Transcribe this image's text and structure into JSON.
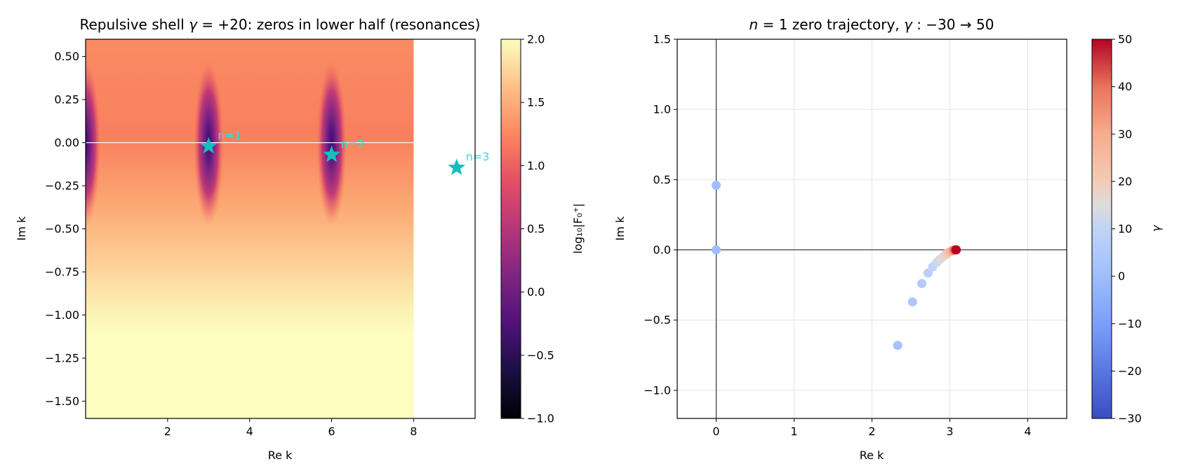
{
  "chart_data": [
    {
      "type": "heatmap",
      "title_parts": {
        "pre": "Repulsive shell ",
        "symbol": "γ",
        "mid": " = +20: zeros in lower half (resonances)"
      },
      "xlabel": "Re k",
      "ylabel": "Im k",
      "xlim": [
        0,
        9.5
      ],
      "ylim": [
        -1.6,
        0.6
      ],
      "data_extent_x": [
        0,
        8
      ],
      "xticks": [
        2,
        4,
        6,
        8
      ],
      "xtick_labels": [
        "2",
        "4",
        "6",
        "8"
      ],
      "yticks": [
        0.5,
        0.25,
        0.0,
        -0.25,
        -0.5,
        -0.75,
        -1.0,
        -1.25,
        -1.5
      ],
      "ytick_labels": [
        "0.50",
        "0.25",
        "0.00",
        "−0.25",
        "−0.50",
        "−0.75",
        "−1.00",
        "−1.25",
        "−1.50"
      ],
      "colormap": "magma",
      "colorbar": {
        "range": [
          -1.0,
          2.0
        ],
        "ticks": [
          2.0,
          1.5,
          1.0,
          0.5,
          0.0,
          -0.5,
          -1.0
        ],
        "tick_labels": [
          "2.0",
          "1.5",
          "1.0",
          "0.5",
          "0.0",
          "−0.5",
          "−1.0"
        ],
        "label": "log₁₀|F₀⁺|"
      },
      "reference_line": {
        "y": 0.0,
        "color": "#ffffff"
      },
      "zeros": [
        {
          "label": "n=1",
          "re": 3.0,
          "im": -0.02
        },
        {
          "label": "n=2",
          "re": 6.0,
          "im": -0.07
        },
        {
          "label": "n=3",
          "re": 9.05,
          "im": -0.145
        }
      ],
      "marker_color": "#17bebe",
      "annotation_color": "#22e5e5"
    },
    {
      "type": "scatter",
      "title_parts": {
        "n": "n",
        "eq1": " = 1 zero trajectory, ",
        "gamma": "γ",
        "range": " : −30 → 50"
      },
      "xlabel": "Re k",
      "ylabel": "Im k",
      "xlim": [
        -0.5,
        4.5
      ],
      "ylim": [
        -1.2,
        1.5
      ],
      "xticks": [
        0,
        1,
        2,
        3,
        4
      ],
      "xtick_labels": [
        "0",
        "1",
        "2",
        "3",
        "4"
      ],
      "yticks": [
        1.5,
        1.0,
        0.5,
        0.0,
        -0.5,
        -1.0
      ],
      "ytick_labels": [
        "1.5",
        "1.0",
        "0.5",
        "0.0",
        "−0.5",
        "−1.0"
      ],
      "grid": true,
      "axis_lines": {
        "x": 0,
        "y": 0
      },
      "colormap": "coolwarm",
      "colorbar": {
        "range": [
          -30,
          50
        ],
        "ticks": [
          50,
          40,
          30,
          20,
          10,
          0,
          -10,
          -20,
          -30
        ],
        "tick_labels": [
          "50",
          "40",
          "30",
          "20",
          "10",
          "0",
          "−10",
          "−20",
          "−30"
        ],
        "label": "γ"
      },
      "points": [
        {
          "re": 0.0,
          "im": 0.46,
          "gamma": 0
        },
        {
          "re": 0.0,
          "im": 0.0,
          "gamma": 0
        },
        {
          "re": 2.33,
          "im": -0.68,
          "gamma": 2
        },
        {
          "re": 2.52,
          "im": -0.37,
          "gamma": 4
        },
        {
          "re": 2.64,
          "im": -0.24,
          "gamma": 6
        },
        {
          "re": 2.72,
          "im": -0.165,
          "gamma": 8
        },
        {
          "re": 2.78,
          "im": -0.12,
          "gamma": 10
        },
        {
          "re": 2.83,
          "im": -0.09,
          "gamma": 12
        },
        {
          "re": 2.87,
          "im": -0.068,
          "gamma": 14
        },
        {
          "re": 2.91,
          "im": -0.05,
          "gamma": 16
        },
        {
          "re": 2.94,
          "im": -0.037,
          "gamma": 18
        },
        {
          "re": 2.96,
          "im": -0.027,
          "gamma": 20
        },
        {
          "re": 2.98,
          "im": -0.019,
          "gamma": 22
        },
        {
          "re": 3.0,
          "im": -0.013,
          "gamma": 24
        },
        {
          "re": 3.015,
          "im": -0.009,
          "gamma": 26
        },
        {
          "re": 3.025,
          "im": -0.006,
          "gamma": 28
        },
        {
          "re": 3.035,
          "im": -0.004,
          "gamma": 30
        },
        {
          "re": 3.045,
          "im": -0.003,
          "gamma": 32
        },
        {
          "re": 3.05,
          "im": -0.002,
          "gamma": 34
        },
        {
          "re": 3.055,
          "im": -0.001,
          "gamma": 36
        },
        {
          "re": 3.06,
          "im": 0.0,
          "gamma": 38
        },
        {
          "re": 3.065,
          "im": 0.0,
          "gamma": 40
        },
        {
          "re": 3.07,
          "im": 0.0,
          "gamma": 42
        },
        {
          "re": 3.075,
          "im": 0.0,
          "gamma": 44
        },
        {
          "re": 3.078,
          "im": 0.0,
          "gamma": 46
        },
        {
          "re": 3.08,
          "im": 0.0,
          "gamma": 48
        },
        {
          "re": 3.082,
          "im": 0.0,
          "gamma": 50
        }
      ]
    }
  ]
}
